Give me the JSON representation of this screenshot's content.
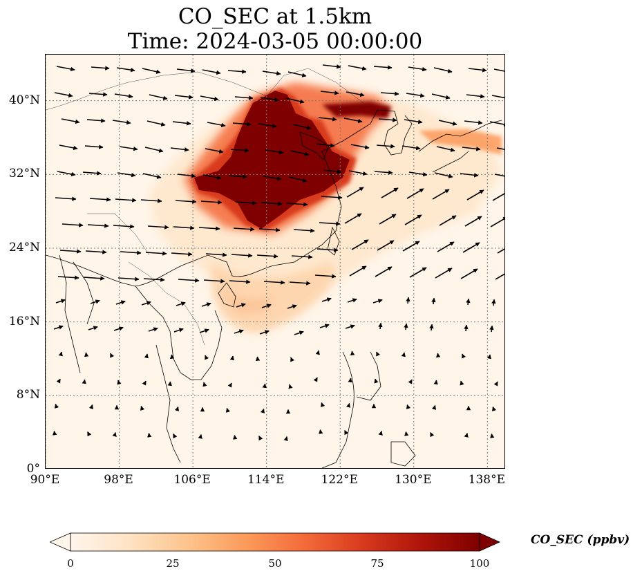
{
  "title": {
    "line1": "CO_SEC at 1.5km",
    "line2": "Time: 2024-03-05 00:00:00"
  },
  "map": {
    "extent": {
      "lon": [
        90,
        140
      ],
      "lat": [
        0,
        45
      ]
    },
    "gridlines": true,
    "lat_ticks": [
      {
        "value": 0,
        "label": "0°"
      },
      {
        "value": 8,
        "label": "8°N"
      },
      {
        "value": 16,
        "label": "16°N"
      },
      {
        "value": 24,
        "label": "24°N"
      },
      {
        "value": 32,
        "label": "32°N"
      },
      {
        "value": 40,
        "label": "40°N"
      }
    ],
    "lon_ticks": [
      {
        "value": 90,
        "label": "90°E"
      },
      {
        "value": 98,
        "label": "98°E"
      },
      {
        "value": 106,
        "label": "106°E"
      },
      {
        "value": 114,
        "label": "114°E"
      },
      {
        "value": 122,
        "label": "122°E"
      },
      {
        "value": 130,
        "label": "130°E"
      },
      {
        "value": 138,
        "label": "138°E"
      }
    ],
    "plume_color_max": "#7f0000",
    "background_color": "#fff5e9"
  },
  "colorbar": {
    "label": "CO_SEC (ppbv)",
    "min": 0,
    "max": 100,
    "extend": "both",
    "ticks": [
      "0",
      "25",
      "50",
      "75",
      "100"
    ],
    "colormap": [
      "#fff5eb",
      "#fee3c4",
      "#fdc48d",
      "#fc9a5a",
      "#f46b3a",
      "#d83a1e",
      "#ae1409",
      "#7f0000"
    ]
  }
}
